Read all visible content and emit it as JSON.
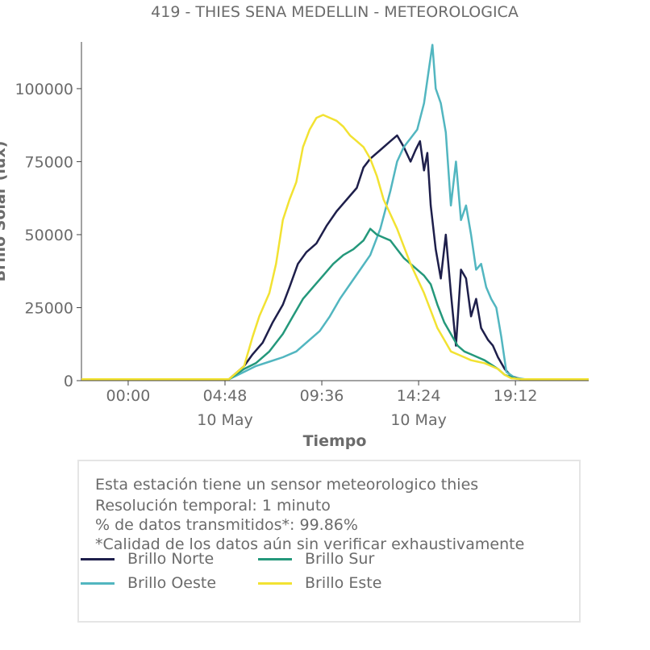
{
  "chart_data": {
    "type": "line",
    "title": "419 - THIES SENA MEDELLIN - METEOROLOGICA",
    "xlabel": "Tiempo",
    "ylabel": "Brillo Solar (lux)",
    "x_ticks": [
      {
        "t": 0,
        "time": "00:00",
        "date": ""
      },
      {
        "t": 288,
        "time": "04:48",
        "date": "10 May"
      },
      {
        "t": 576,
        "time": "09:36",
        "date": ""
      },
      {
        "t": 864,
        "time": "14:24",
        "date": "10 May"
      },
      {
        "t": 1152,
        "time": "19:12",
        "date": ""
      }
    ],
    "y_ticks": [
      0,
      25000,
      50000,
      75000,
      100000
    ],
    "xlim_minutes": [
      -139,
      1370
    ],
    "ylim": [
      0,
      116000
    ],
    "grid": false,
    "legend_placement": "bottom",
    "series": [
      {
        "name": "Brillo Norte",
        "color": "#1e1f4b",
        "points": [
          [
            -139,
            500
          ],
          [
            300,
            500
          ],
          [
            345,
            5000
          ],
          [
            370,
            9000
          ],
          [
            400,
            13000
          ],
          [
            430,
            20000
          ],
          [
            460,
            26000
          ],
          [
            480,
            32000
          ],
          [
            505,
            40000
          ],
          [
            530,
            44000
          ],
          [
            560,
            47000
          ],
          [
            590,
            53000
          ],
          [
            620,
            58000
          ],
          [
            650,
            62000
          ],
          [
            680,
            66000
          ],
          [
            700,
            73000
          ],
          [
            720,
            76000
          ],
          [
            750,
            79000
          ],
          [
            780,
            82000
          ],
          [
            800,
            84000
          ],
          [
            820,
            80000
          ],
          [
            840,
            75000
          ],
          [
            855,
            79000
          ],
          [
            868,
            82000
          ],
          [
            880,
            72000
          ],
          [
            890,
            78000
          ],
          [
            900,
            60000
          ],
          [
            915,
            45000
          ],
          [
            930,
            35000
          ],
          [
            945,
            50000
          ],
          [
            960,
            30000
          ],
          [
            975,
            12000
          ],
          [
            990,
            38000
          ],
          [
            1005,
            35000
          ],
          [
            1020,
            22000
          ],
          [
            1035,
            28000
          ],
          [
            1050,
            18000
          ],
          [
            1070,
            14000
          ],
          [
            1085,
            12000
          ],
          [
            1100,
            8000
          ],
          [
            1120,
            4000
          ],
          [
            1140,
            1500
          ],
          [
            1170,
            500
          ],
          [
            1370,
            500
          ]
        ]
      },
      {
        "name": "Brillo Oeste",
        "color": "#52b6c0",
        "points": [
          [
            -139,
            500
          ],
          [
            300,
            500
          ],
          [
            345,
            3000
          ],
          [
            380,
            5000
          ],
          [
            420,
            6500
          ],
          [
            460,
            8000
          ],
          [
            500,
            10000
          ],
          [
            540,
            14000
          ],
          [
            570,
            17000
          ],
          [
            600,
            22000
          ],
          [
            630,
            28000
          ],
          [
            660,
            33000
          ],
          [
            690,
            38000
          ],
          [
            720,
            43000
          ],
          [
            750,
            52000
          ],
          [
            780,
            65000
          ],
          [
            800,
            75000
          ],
          [
            820,
            80000
          ],
          [
            840,
            83000
          ],
          [
            860,
            86000
          ],
          [
            880,
            95000
          ],
          [
            895,
            107000
          ],
          [
            905,
            115000
          ],
          [
            915,
            100000
          ],
          [
            930,
            95000
          ],
          [
            945,
            85000
          ],
          [
            960,
            60000
          ],
          [
            975,
            75000
          ],
          [
            990,
            55000
          ],
          [
            1005,
            60000
          ],
          [
            1020,
            50000
          ],
          [
            1035,
            38000
          ],
          [
            1050,
            40000
          ],
          [
            1065,
            32000
          ],
          [
            1080,
            28000
          ],
          [
            1095,
            25000
          ],
          [
            1110,
            15000
          ],
          [
            1125,
            3000
          ],
          [
            1150,
            1000
          ],
          [
            1180,
            500
          ],
          [
            1370,
            500
          ]
        ]
      },
      {
        "name": "Brillo Sur",
        "color": "#24987b",
        "points": [
          [
            -139,
            500
          ],
          [
            300,
            500
          ],
          [
            345,
            4000
          ],
          [
            380,
            6000
          ],
          [
            420,
            10000
          ],
          [
            460,
            16000
          ],
          [
            490,
            22000
          ],
          [
            520,
            28000
          ],
          [
            550,
            32000
          ],
          [
            580,
            36000
          ],
          [
            610,
            40000
          ],
          [
            640,
            43000
          ],
          [
            670,
            45000
          ],
          [
            700,
            48000
          ],
          [
            720,
            52000
          ],
          [
            740,
            50000
          ],
          [
            760,
            49000
          ],
          [
            780,
            48000
          ],
          [
            800,
            45000
          ],
          [
            820,
            42000
          ],
          [
            840,
            40000
          ],
          [
            860,
            38000
          ],
          [
            880,
            36000
          ],
          [
            900,
            33000
          ],
          [
            920,
            26000
          ],
          [
            940,
            20000
          ],
          [
            960,
            16000
          ],
          [
            980,
            12000
          ],
          [
            1000,
            10000
          ],
          [
            1020,
            9000
          ],
          [
            1040,
            8000
          ],
          [
            1060,
            7000
          ],
          [
            1080,
            5500
          ],
          [
            1100,
            4000
          ],
          [
            1120,
            2000
          ],
          [
            1150,
            800
          ],
          [
            1170,
            500
          ],
          [
            1370,
            500
          ]
        ]
      },
      {
        "name": "Brillo Este",
        "color": "#f2e232",
        "points": [
          [
            -139,
            500
          ],
          [
            300,
            500
          ],
          [
            345,
            5000
          ],
          [
            370,
            15000
          ],
          [
            390,
            22000
          ],
          [
            420,
            30000
          ],
          [
            440,
            40000
          ],
          [
            460,
            55000
          ],
          [
            480,
            62000
          ],
          [
            500,
            68000
          ],
          [
            520,
            80000
          ],
          [
            540,
            86000
          ],
          [
            560,
            90000
          ],
          [
            580,
            91000
          ],
          [
            600,
            90000
          ],
          [
            620,
            89000
          ],
          [
            640,
            87000
          ],
          [
            660,
            84000
          ],
          [
            680,
            82000
          ],
          [
            700,
            80000
          ],
          [
            720,
            76000
          ],
          [
            740,
            70000
          ],
          [
            760,
            62000
          ],
          [
            780,
            57000
          ],
          [
            800,
            52000
          ],
          [
            820,
            46000
          ],
          [
            840,
            40000
          ],
          [
            860,
            35000
          ],
          [
            880,
            30000
          ],
          [
            900,
            24000
          ],
          [
            920,
            18000
          ],
          [
            940,
            14000
          ],
          [
            960,
            10000
          ],
          [
            980,
            9000
          ],
          [
            1000,
            8000
          ],
          [
            1020,
            7000
          ],
          [
            1040,
            6500
          ],
          [
            1060,
            6000
          ],
          [
            1080,
            5000
          ],
          [
            1100,
            4000
          ],
          [
            1120,
            2000
          ],
          [
            1140,
            800
          ],
          [
            1170,
            500
          ],
          [
            1370,
            500
          ]
        ]
      }
    ]
  },
  "info": {
    "line1": "Esta estación tiene un sensor meteorologico thies",
    "line2": "Resolución temporal: 1 minuto",
    "line3": "% de datos transmitidos*: 99.86%",
    "line4": "*Calidad de los datos aún sin verificar exhaustivamente"
  }
}
